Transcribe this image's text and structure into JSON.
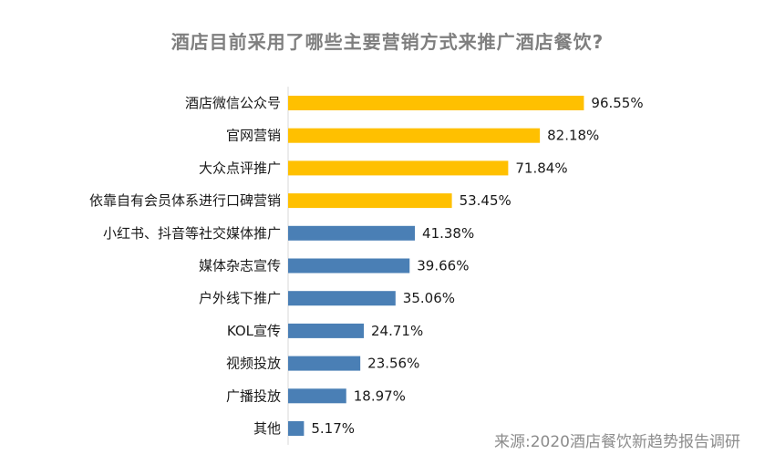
{
  "chart_data": {
    "type": "bar",
    "orientation": "horizontal",
    "title": "酒店目前采用了哪些主要营销方式来推广酒店餐饮?",
    "categories": [
      "酒店微信公众号",
      "官网营销",
      "大众点评推广",
      "依靠自有会员体系进行口碑营销",
      "小红书、抖音等社交媒体推广",
      "媒体杂志宣传",
      "户外线下推广",
      "KOL宣传",
      "视频投放",
      "广播投放",
      "其他"
    ],
    "values": [
      96.55,
      82.18,
      71.84,
      53.45,
      41.38,
      39.66,
      35.06,
      24.71,
      23.56,
      18.97,
      5.17
    ],
    "value_labels": [
      "96.55%",
      "82.18%",
      "71.84%",
      "53.45%",
      "41.38%",
      "39.66%",
      "35.06%",
      "24.71%",
      "23.56%",
      "18.97%",
      "5.17%"
    ],
    "bar_colors": [
      "#ffc000",
      "#ffc000",
      "#ffc000",
      "#ffc000",
      "#4a7fb5",
      "#4a7fb5",
      "#4a7fb5",
      "#4a7fb5",
      "#4a7fb5",
      "#4a7fb5",
      "#4a7fb5"
    ],
    "xlim": [
      0,
      100
    ],
    "xlabel": "",
    "ylabel": "",
    "grid": false,
    "axis_color": "#d9d9d9"
  },
  "source": "来源:2020酒店餐饮新趋势报告调研"
}
